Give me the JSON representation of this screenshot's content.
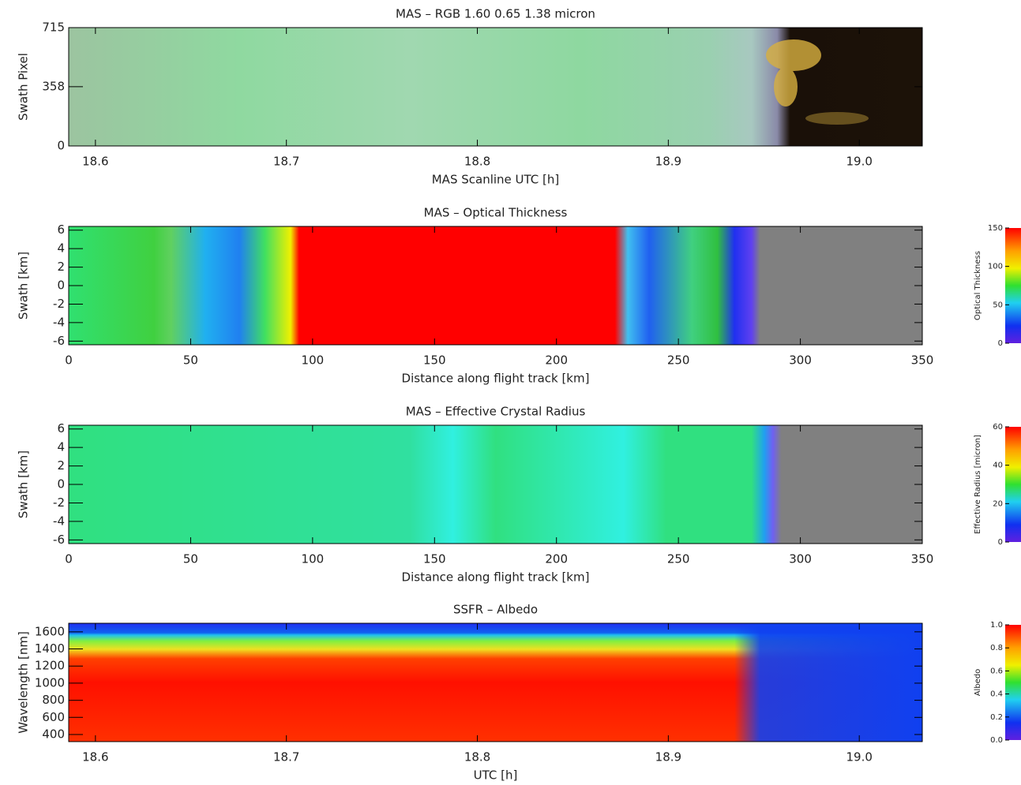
{
  "chart_data": [
    {
      "type": "image",
      "title": "MAS – RGB 1.60 0.65 1.38 micron",
      "xlabel": "MAS Scanline UTC [h]",
      "ylabel": "Swath Pixel",
      "xlim": [
        18.586,
        19.033
      ],
      "xticks": [
        18.6,
        18.7,
        18.8,
        18.9,
        {
          "value": 19,
          "label": "19.0"
        }
      ],
      "ylim": [
        0,
        715
      ],
      "yticks": [
        0,
        358,
        715
      ]
    },
    {
      "type": "heatmap",
      "title": "MAS – Optical Thickness",
      "xlabel": "Distance along flight track [km]",
      "ylabel": "Swath [km]",
      "xlim": [
        0,
        350
      ],
      "xticks": [
        0,
        50,
        100,
        150,
        200,
        250,
        300,
        350
      ],
      "ylim": [
        -6.4,
        6.4
      ],
      "yticks": [
        -6,
        -4,
        -2,
        0,
        2,
        4,
        6
      ],
      "colorbar": {
        "label": "Optical Thickness",
        "lim": [
          0,
          150
        ],
        "ticks": [
          0,
          50,
          100,
          150
        ]
      }
    },
    {
      "type": "heatmap",
      "title": "MAS – Effective Crystal Radius",
      "xlabel": "Distance along flight track [km]",
      "ylabel": "Swath [km]",
      "xlim": [
        0,
        350
      ],
      "xticks": [
        0,
        50,
        100,
        150,
        200,
        250,
        300,
        350
      ],
      "ylim": [
        -6.4,
        6.4
      ],
      "yticks": [
        -6,
        -4,
        -2,
        0,
        2,
        4,
        6
      ],
      "colorbar": {
        "label": "Effective Radius [micron]",
        "lim": [
          0,
          60
        ],
        "ticks": [
          0,
          20,
          40,
          60
        ]
      }
    },
    {
      "type": "heatmap",
      "title": "SSFR – Albedo",
      "xlabel": "UTC [h]",
      "ylabel": "Wavelength [nm]",
      "xlim": [
        18.586,
        19.033
      ],
      "xticks": [
        18.6,
        18.7,
        18.8,
        18.9,
        {
          "value": 19,
          "label": "19.0"
        }
      ],
      "ylim": [
        317,
        1700
      ],
      "yticks": [
        400,
        600,
        800,
        1000,
        1200,
        1400,
        1600
      ],
      "colorbar": {
        "label": "Albedo",
        "lim": [
          0,
          1
        ],
        "ticks": [
          {
            "value": 0,
            "label": "0.0"
          },
          {
            "value": 0.2,
            "label": "0.2"
          },
          {
            "value": 0.4,
            "label": "0.4"
          },
          {
            "value": 0.6,
            "label": "0.6"
          },
          {
            "value": 0.8,
            "label": "0.8"
          },
          {
            "value": 1,
            "label": "1.0"
          }
        ]
      }
    }
  ]
}
